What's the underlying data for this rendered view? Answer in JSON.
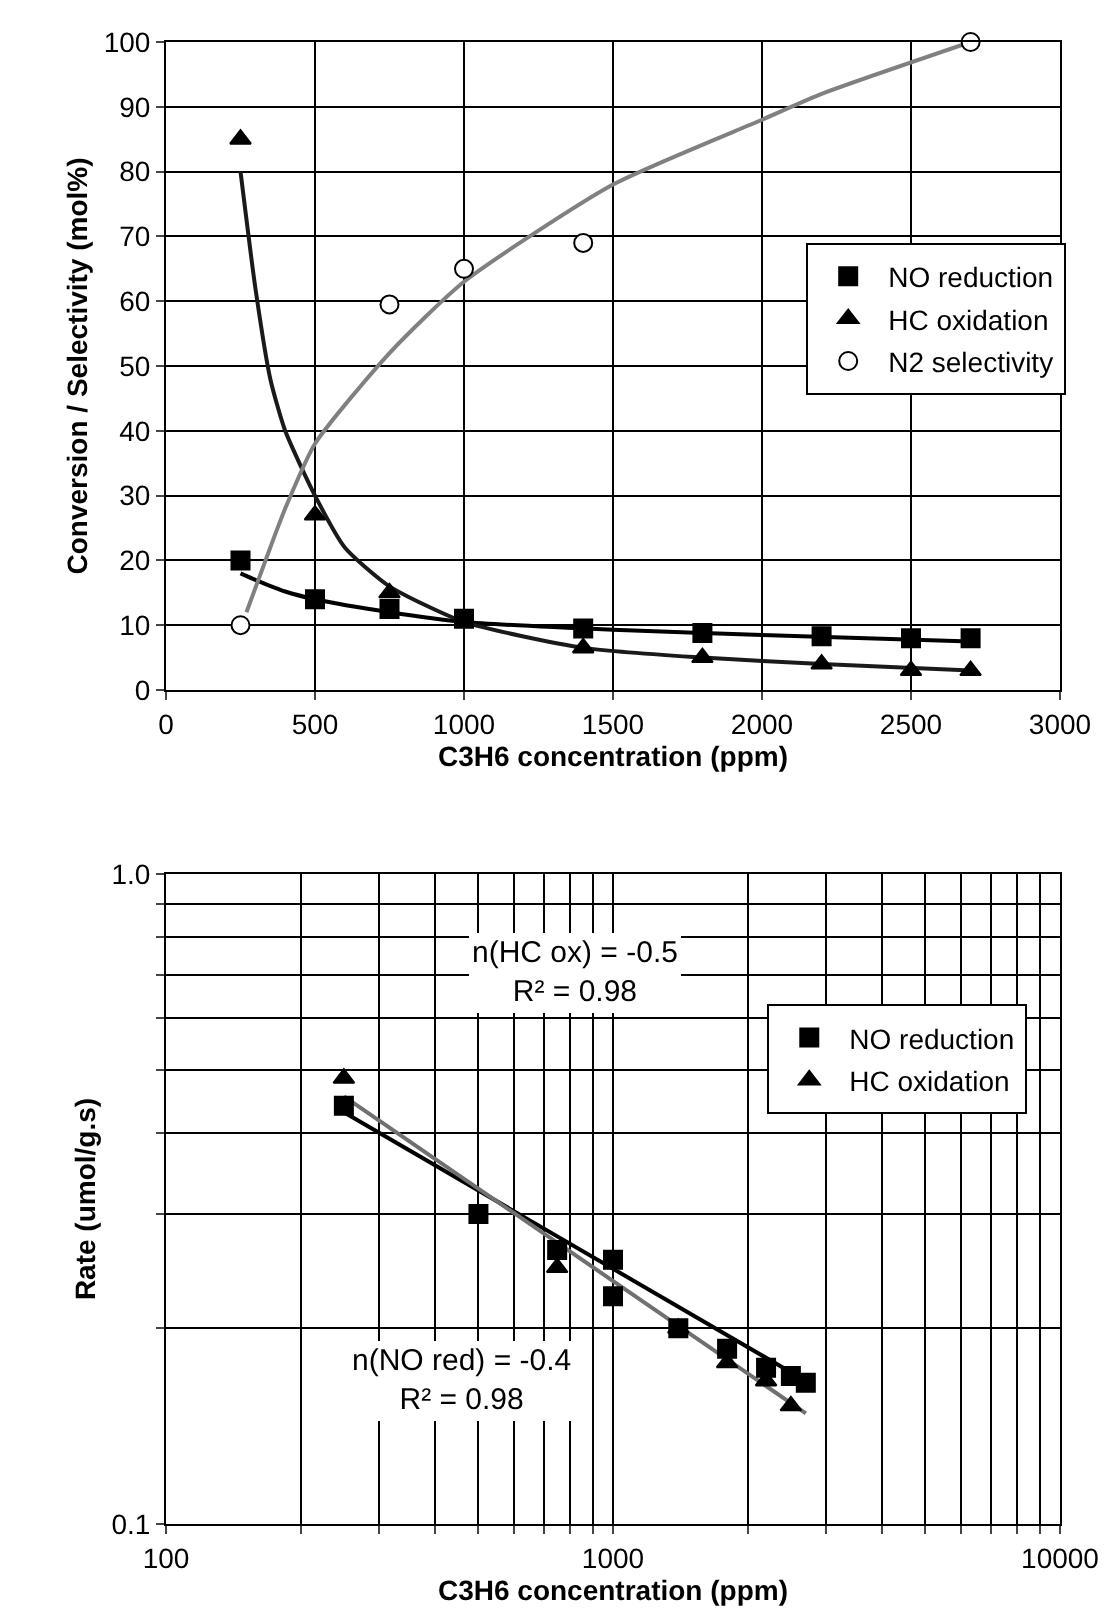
{
  "chart_data": [
    {
      "type": "scatter",
      "xlabel": "C3H6 concentration (ppm)",
      "ylabel": "Conversion / Selectivity (mol%)",
      "xlim": [
        0,
        3000
      ],
      "xticks": [
        0,
        500,
        1000,
        1500,
        2000,
        2500,
        3000
      ],
      "ylim": [
        0,
        100
      ],
      "yticks": [
        0,
        10,
        20,
        30,
        40,
        50,
        60,
        70,
        80,
        90,
        100
      ],
      "grid": true,
      "legend": "right",
      "series": [
        {
          "name": "NO reduction",
          "color": "#000000",
          "marker": "square",
          "x": [
            250,
            500,
            750,
            1000,
            1400,
            1800,
            2200,
            2500,
            2700
          ],
          "values": [
            20,
            14,
            12.5,
            11,
            9.5,
            8.8,
            8.3,
            8,
            8
          ]
        },
        {
          "name": "HC oxidation",
          "color": "#000000",
          "marker": "triangle",
          "x": [
            250,
            500,
            750,
            1400,
            1800,
            2200,
            2500,
            2700
          ],
          "values": [
            85,
            27,
            15,
            6.5,
            5,
            4,
            3,
            3
          ]
        },
        {
          "name": "N2 selectivity",
          "color": "#ffffff",
          "marker": "circle",
          "x": [
            250,
            750,
            1000,
            1400,
            2700
          ],
          "values": [
            10,
            59.5,
            65,
            69,
            100
          ]
        },
        {
          "type": "line",
          "color": "#000000",
          "marker": "none",
          "x": [
            250,
            300,
            400,
            500,
            750,
            1000,
            1500,
            2000,
            2700
          ],
          "values": [
            18,
            17,
            15.2,
            14,
            12,
            10.5,
            9.3,
            8.5,
            7.5
          ]
        },
        {
          "type": "line",
          "color": "#1a1a1a",
          "marker": "none",
          "x": [
            250,
            300,
            350,
            400,
            500,
            600,
            750,
            1000,
            1400,
            1800,
            2200,
            2700
          ],
          "values": [
            80,
            62,
            48,
            40,
            30,
            22,
            16,
            10.5,
            6.5,
            5,
            4,
            3
          ]
        },
        {
          "type": "line",
          "color": "#808080",
          "marker": "none",
          "x": [
            270,
            350,
            400,
            500,
            750,
            1000,
            1500,
            2000,
            2200,
            2700
          ],
          "values": [
            12,
            22,
            28,
            38,
            52,
            63,
            78,
            88,
            92,
            100
          ]
        }
      ]
    },
    {
      "type": "scatter",
      "xlabel": "C3H6 concentration (ppm)",
      "ylabel": "Rate (umol/g.s)",
      "log": "xy",
      "xlim": [
        100,
        10000
      ],
      "xticks": [
        100,
        {
          "value": 200,
          "label": null
        },
        {
          "value": 300,
          "label": null
        },
        {
          "value": 400,
          "label": null
        },
        {
          "value": 500,
          "label": null
        },
        {
          "value": 600,
          "label": null
        },
        {
          "value": 700,
          "label": null
        },
        {
          "value": 800,
          "label": null
        },
        {
          "value": 900,
          "label": null
        },
        1000,
        {
          "value": 2000,
          "label": null
        },
        {
          "value": 3000,
          "label": null
        },
        {
          "value": 4000,
          "label": null
        },
        {
          "value": 5000,
          "label": null
        },
        {
          "value": 6000,
          "label": null
        },
        {
          "value": 7000,
          "label": null
        },
        {
          "value": 8000,
          "label": null
        },
        {
          "value": 9000,
          "label": null
        },
        10000
      ],
      "ylim": [
        0.1,
        1.0
      ],
      "yticks": [
        0.1,
        {
          "value": 0.2,
          "label": null
        },
        {
          "value": 0.3,
          "label": null
        },
        {
          "value": 0.4,
          "label": null
        },
        {
          "value": 0.5,
          "label": null
        },
        {
          "value": 0.6,
          "label": null
        },
        {
          "value": 0.7,
          "label": null
        },
        {
          "value": 0.8,
          "label": null
        },
        {
          "value": 0.9,
          "label": null
        },
        {
          "value": 1.0,
          "label": "1.0"
        }
      ],
      "grid": true,
      "legend": "right",
      "annotations": [
        "n(HC ox) = -0.5\nR² = 0.98",
        "n(NO red) = -0.4\nR² = 0.98"
      ],
      "series": [
        {
          "name": "NO reduction",
          "color": "#000000",
          "marker": "square",
          "x": [
            250,
            500,
            750,
            1000,
            1000,
            1400,
            1800,
            2200,
            2500,
            2700
          ],
          "values": [
            0.44,
            0.3,
            0.264,
            0.255,
            0.224,
            0.2,
            0.186,
            0.174,
            0.169,
            0.165
          ]
        },
        {
          "name": "HC oxidation",
          "color": "#000000",
          "marker": "triangle",
          "x": [
            250,
            750,
            1400,
            1800,
            2200,
            2500
          ],
          "values": [
            0.485,
            0.248,
            0.2,
            0.177,
            0.166,
            0.152
          ]
        },
        {
          "type": "line",
          "color": "#000000",
          "marker": "none",
          "x": [
            250,
            2700
          ],
          "values": [
            0.43,
            0.166
          ]
        },
        {
          "type": "line",
          "color": "#707070",
          "marker": "none",
          "x": [
            250,
            2700
          ],
          "values": [
            0.455,
            0.148
          ]
        }
      ]
    }
  ]
}
